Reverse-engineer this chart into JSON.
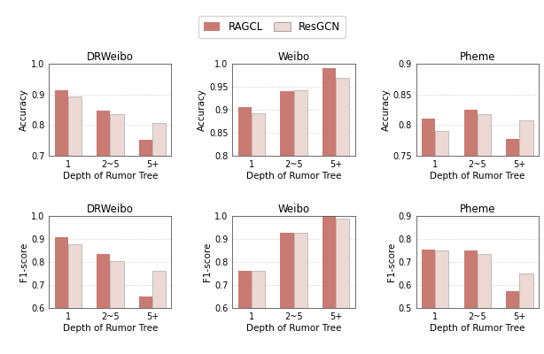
{
  "legend_labels": [
    "RAGCL",
    "ResGCN"
  ],
  "ragcl_color": "#C97A72",
  "resgcn_color": "#EDD8D3",
  "categories": [
    "1",
    "2~5",
    "5+"
  ],
  "subplots": [
    {
      "title": "DRWeibo",
      "ylabel": "Accuracy",
      "ylim": [
        0.7,
        1.0
      ],
      "yticks": [
        0.7,
        0.8,
        0.9,
        1.0
      ],
      "ragcl": [
        0.915,
        0.848,
        0.752
      ],
      "resgcn": [
        0.893,
        0.835,
        0.808
      ]
    },
    {
      "title": "Weibo",
      "ylabel": "Accuracy",
      "ylim": [
        0.8,
        1.0
      ],
      "yticks": [
        0.8,
        0.85,
        0.9,
        0.95,
        1.0
      ],
      "ragcl": [
        0.905,
        0.94,
        0.99
      ],
      "resgcn": [
        0.893,
        0.943,
        0.97
      ]
    },
    {
      "title": "Pheme",
      "ylabel": "Accuracy",
      "ylim": [
        0.75,
        0.9
      ],
      "yticks": [
        0.75,
        0.8,
        0.85,
        0.9
      ],
      "ragcl": [
        0.81,
        0.825,
        0.778
      ],
      "resgcn": [
        0.79,
        0.818,
        0.808
      ]
    },
    {
      "title": "DRWeibo",
      "ylabel": "F1-score",
      "ylim": [
        0.6,
        1.0
      ],
      "yticks": [
        0.6,
        0.7,
        0.8,
        0.9,
        1.0
      ],
      "ragcl": [
        0.908,
        0.835,
        0.65
      ],
      "resgcn": [
        0.877,
        0.803,
        0.762
      ]
    },
    {
      "title": "Weibo",
      "ylabel": "F1-score",
      "ylim": [
        0.6,
        1.0
      ],
      "yticks": [
        0.6,
        0.7,
        0.8,
        0.9,
        1.0
      ],
      "ragcl": [
        0.762,
        0.925,
        0.999
      ],
      "resgcn": [
        0.76,
        0.928,
        0.988
      ]
    },
    {
      "title": "Pheme",
      "ylabel": "F1-score",
      "ylim": [
        0.5,
        0.9
      ],
      "yticks": [
        0.5,
        0.6,
        0.7,
        0.8,
        0.9
      ],
      "ragcl": [
        0.752,
        0.748,
        0.572
      ],
      "resgcn": [
        0.748,
        0.735,
        0.648
      ]
    }
  ],
  "xlabel": "Depth of Rumor Tree",
  "bar_width": 0.32,
  "title_fontsize": 8.5,
  "label_fontsize": 7.5,
  "tick_fontsize": 7,
  "legend_fontsize": 8.5,
  "grid_color": "#C8C8C8",
  "grid_alpha": 0.7
}
